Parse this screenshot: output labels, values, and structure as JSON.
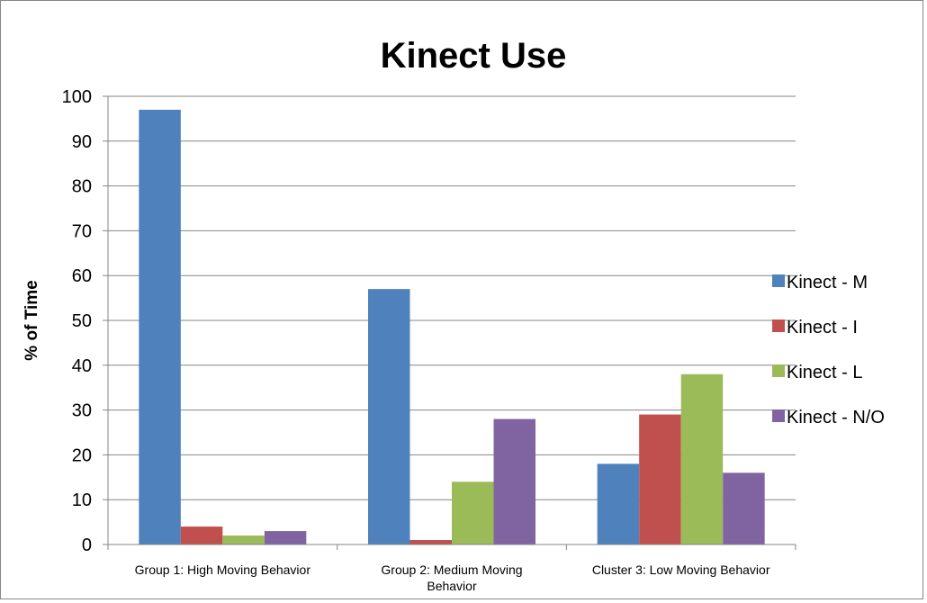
{
  "chart_data": {
    "type": "bar",
    "title": "Kinect Use",
    "xlabel": "",
    "ylabel": "% of Time",
    "ylim": [
      0,
      100
    ],
    "yticks": [
      0,
      10,
      20,
      30,
      40,
      50,
      60,
      70,
      80,
      90,
      100
    ],
    "grid": true,
    "legend_position": "right",
    "categories": [
      [
        "Group 1: High Moving Behavior"
      ],
      [
        "Group 2: Medium Moving",
        "Behavior"
      ],
      [
        "Cluster 3: Low Moving Behavior"
      ]
    ],
    "series": [
      {
        "name": "Kinect - M",
        "color": "#4F81BD",
        "values": [
          97,
          57,
          18
        ]
      },
      {
        "name": "Kinect - I",
        "color": "#C0504D",
        "values": [
          4,
          1,
          29
        ]
      },
      {
        "name": "Kinect - L",
        "color": "#9BBB59",
        "values": [
          2,
          14,
          38
        ]
      },
      {
        "name": "Kinect - N/O",
        "color": "#8064A2",
        "values": [
          3,
          28,
          16
        ]
      }
    ]
  }
}
